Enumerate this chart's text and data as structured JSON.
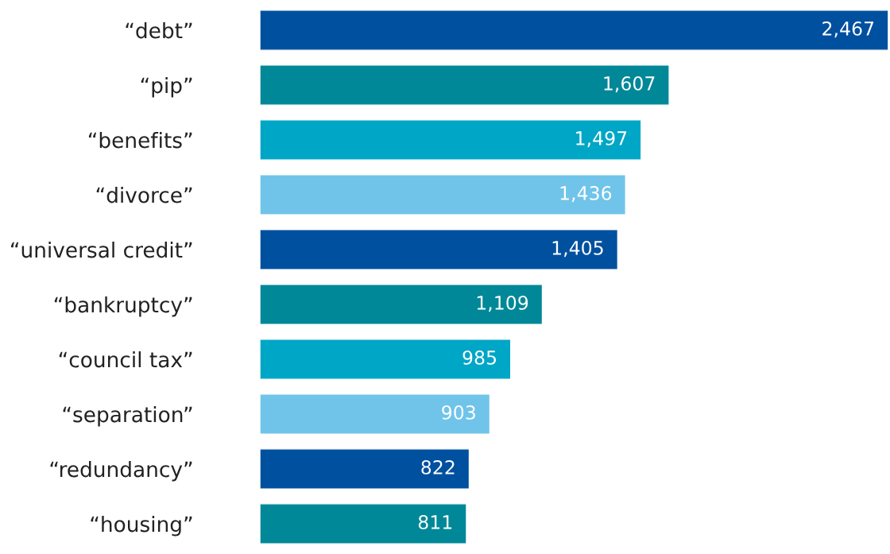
{
  "chart_data": {
    "type": "bar",
    "orientation": "horizontal",
    "categories": [
      "“debt”",
      "“pip”",
      "“benefits”",
      "“divorce”",
      "“universal credit”",
      "“bankruptcy”",
      "“council tax”",
      "“separation”",
      "“redundancy”",
      "“housing”"
    ],
    "values": [
      2467,
      1607,
      1497,
      1436,
      1405,
      1109,
      985,
      903,
      822,
      811
    ],
    "value_labels": [
      "2,467",
      "1,607",
      "1,497",
      "1,436",
      "1,405",
      "1,109",
      "985",
      "903",
      "822",
      "811"
    ],
    "colors": [
      "#0050a0",
      "#008898",
      "#00a6c6",
      "#70c4ea",
      "#0050a0",
      "#008898",
      "#00a6c6",
      "#70c4ea",
      "#0050a0",
      "#008898"
    ],
    "grid": false,
    "legend": false
  }
}
